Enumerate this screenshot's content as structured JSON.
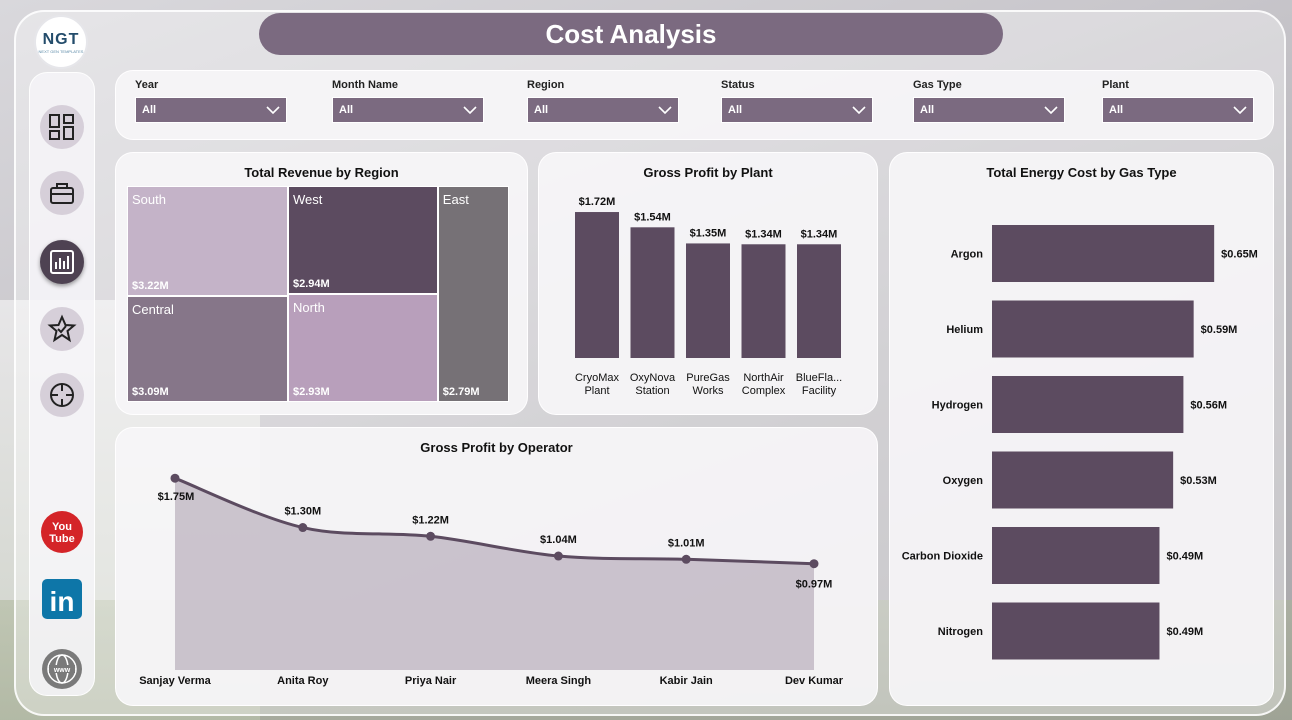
{
  "header": {
    "title": "Cost Analysis",
    "logo_text": "NGT",
    "logo_subtext": "NEXT GEN TEMPLATES"
  },
  "sidebar": {
    "items": [
      {
        "icon": "dashboard-icon"
      },
      {
        "icon": "briefcase-icon"
      },
      {
        "icon": "bar-chart-icon"
      },
      {
        "icon": "star-icon"
      },
      {
        "icon": "crosshair-icon"
      }
    ],
    "social": [
      {
        "icon": "youtube-icon",
        "label": "You\nTube"
      },
      {
        "icon": "linkedin-icon",
        "label": "in"
      },
      {
        "icon": "globe-icon",
        "label": "www"
      }
    ]
  },
  "filters": [
    {
      "label": "Year",
      "value": "All"
    },
    {
      "label": "Month Name",
      "value": "All"
    },
    {
      "label": "Region",
      "value": "All"
    },
    {
      "label": "Status",
      "value": "All"
    },
    {
      "label": "Gas Type",
      "value": "All"
    },
    {
      "label": "Plant",
      "value": "All"
    }
  ],
  "colors": {
    "accent": "#7b6a80",
    "bar": "#5c4b60",
    "line": "#5c4b60",
    "area": "#a89aab"
  },
  "chart_data": [
    {
      "id": "revenue_by_region",
      "type": "treemap",
      "title": "Total Revenue by Region",
      "items": [
        {
          "name": "South",
          "value": 3.22,
          "label": "$3.22M",
          "color": "#c4b3c8"
        },
        {
          "name": "West",
          "value": 2.94,
          "label": "$2.94M",
          "color": "#5c4b60"
        },
        {
          "name": "East",
          "value": 2.79,
          "label": "$2.79M",
          "color": "#767176"
        },
        {
          "name": "Central",
          "value": 3.09,
          "label": "$3.09M",
          "color": "#867689"
        },
        {
          "name": "North",
          "value": 2.93,
          "label": "$2.93M",
          "color": "#b89fbb"
        }
      ]
    },
    {
      "id": "gross_profit_by_plant",
      "type": "bar",
      "title": "Gross Profit by Plant",
      "categories": [
        "CryoMax Plant",
        "OxyNova Station",
        "PureGas Works",
        "NorthAir Complex",
        "BlueFla... Facility"
      ],
      "values": [
        1.72,
        1.54,
        1.35,
        1.34,
        1.34
      ],
      "labels": [
        "$1.72M",
        "$1.54M",
        "$1.35M",
        "$1.34M",
        "$1.34M"
      ],
      "ylim": [
        0,
        1.85
      ]
    },
    {
      "id": "energy_cost_by_gas",
      "type": "bar",
      "orientation": "horizontal",
      "title": "Total Energy Cost by Gas Type",
      "categories": [
        "Argon",
        "Helium",
        "Hydrogen",
        "Oxygen",
        "Carbon Dioxide",
        "Nitrogen"
      ],
      "values": [
        0.65,
        0.59,
        0.56,
        0.53,
        0.49,
        0.49
      ],
      "labels": [
        "$0.65M",
        "$0.59M",
        "$0.56M",
        "$0.53M",
        "$0.49M",
        "$0.49M"
      ],
      "xlim": [
        0,
        0.67
      ]
    },
    {
      "id": "gross_profit_by_operator",
      "type": "area",
      "title": "Gross Profit by Operator",
      "categories": [
        "Sanjay Verma",
        "Anita Roy",
        "Priya Nair",
        "Meera Singh",
        "Kabir Jain",
        "Dev Kumar"
      ],
      "values": [
        1.75,
        1.3,
        1.22,
        1.04,
        1.01,
        0.97
      ],
      "labels": [
        "$1.75M",
        "$1.30M",
        "$1.22M",
        "$1.04M",
        "$1.01M",
        "$0.97M"
      ],
      "ylim": [
        0,
        1.98
      ]
    }
  ]
}
